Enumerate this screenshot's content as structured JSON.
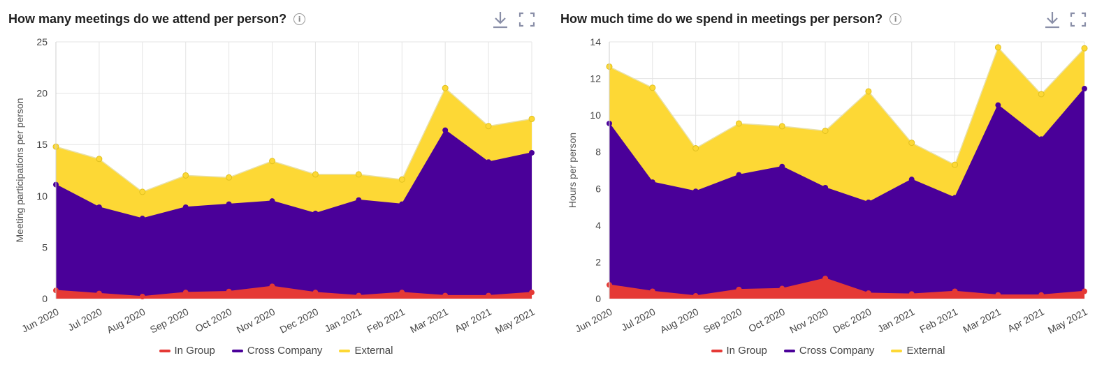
{
  "colors": {
    "in_group": "#e53935",
    "cross_company": "#4a0099",
    "external": "#fdd835",
    "grid": "#e4e4e4",
    "tool": "#8a8fa8"
  },
  "legend": {
    "in_group": "In Group",
    "cross_company": "Cross Company",
    "external": "External"
  },
  "panels": [
    {
      "title": "How many meetings do we attend per person?",
      "info_icon": "info-icon",
      "download_icon": "download-icon",
      "fullscreen_icon": "fullscreen-icon"
    },
    {
      "title": "How much time do we spend in meetings per person?",
      "info_icon": "info-icon",
      "download_icon": "download-icon",
      "fullscreen_icon": "fullscreen-icon"
    }
  ],
  "chart_data": [
    {
      "type": "area",
      "stacked": true,
      "title": "How many meetings do we attend per person?",
      "xlabel": "",
      "ylabel": "Meeting participations per person",
      "ylim": [
        0,
        25
      ],
      "yticks": [
        0,
        5,
        10,
        15,
        20,
        25
      ],
      "grid": true,
      "legend_position": "bottom",
      "categories": [
        "Jun 2020",
        "Jul 2020",
        "Aug 2020",
        "Sep 2020",
        "Oct 2020",
        "Nov 2020",
        "Dec 2020",
        "Jan 2021",
        "Feb 2021",
        "Mar 2021",
        "Apr 2021",
        "May 2021"
      ],
      "series": [
        {
          "name": "In Group",
          "values": [
            0.8,
            0.5,
            0.2,
            0.6,
            0.7,
            1.2,
            0.6,
            0.3,
            0.6,
            0.3,
            0.3,
            0.6
          ]
        },
        {
          "name": "Cross Company",
          "values": [
            10.3,
            8.4,
            7.6,
            8.3,
            8.5,
            8.3,
            7.7,
            9.3,
            8.6,
            16.1,
            13.0,
            13.6
          ]
        },
        {
          "name": "External",
          "values": [
            3.7,
            4.7,
            2.6,
            3.1,
            2.6,
            3.9,
            3.8,
            2.5,
            2.4,
            4.1,
            3.5,
            3.3
          ]
        }
      ]
    },
    {
      "type": "area",
      "stacked": true,
      "title": "How much time do we spend in meetings per person?",
      "xlabel": "",
      "ylabel": "Hours per person",
      "ylim": [
        0,
        14
      ],
      "yticks": [
        0,
        2,
        4,
        6,
        8,
        10,
        12,
        14
      ],
      "grid": true,
      "legend_position": "bottom",
      "categories": [
        "Jun 2020",
        "Jul 2020",
        "Aug 2020",
        "Sep 2020",
        "Oct 2020",
        "Nov 2020",
        "Dec 2020",
        "Jan 2021",
        "Feb 2021",
        "Mar 2021",
        "Apr 2021",
        "May 2021"
      ],
      "series": [
        {
          "name": "In Group",
          "values": [
            0.75,
            0.4,
            0.15,
            0.5,
            0.55,
            1.1,
            0.3,
            0.25,
            0.4,
            0.2,
            0.2,
            0.4
          ]
        },
        {
          "name": "Cross Company",
          "values": [
            8.8,
            5.95,
            5.7,
            6.25,
            6.65,
            4.95,
            4.95,
            6.25,
            5.1,
            10.35,
            8.5,
            11.05
          ]
        },
        {
          "name": "External",
          "values": [
            3.1,
            5.15,
            2.35,
            2.8,
            2.2,
            3.1,
            6.05,
            2.0,
            1.8,
            3.15,
            2.45,
            2.2
          ]
        }
      ]
    }
  ]
}
